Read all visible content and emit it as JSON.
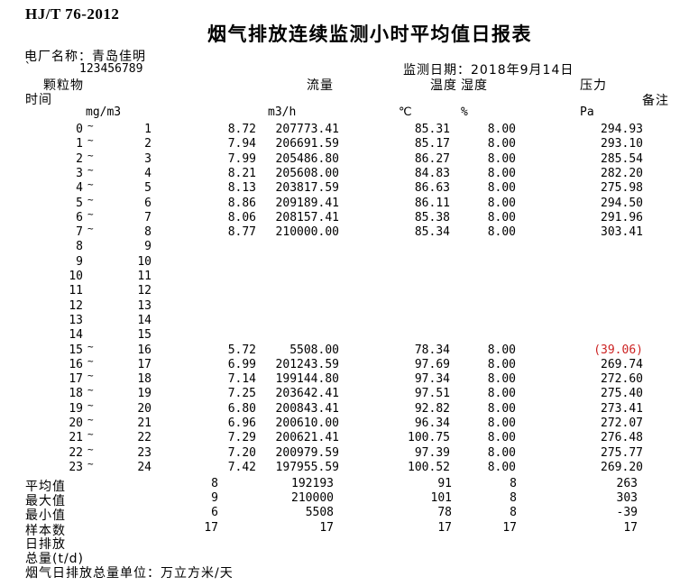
{
  "header": {
    "doc_code": "HJ/T 76-2012",
    "title": "烟气排放连续监测小时平均值日报表",
    "plant_label": "电厂名称：",
    "plant_name": "青岛佳明",
    "plant_mark": "`",
    "plant_code": "123456789",
    "date_label": "监测日期：",
    "date_value": "2018年9月14日"
  },
  "columns": {
    "time": "时间",
    "dust": "颗粒物",
    "flow": "流量",
    "temp": "温度",
    "humidity": "湿度",
    "pressure": "压力",
    "remark": "备注",
    "units": {
      "dust": "mg/m3",
      "flow": "m3/h",
      "temp": "℃",
      "humidity": "%",
      "pressure": "Pa"
    }
  },
  "rows": [
    {
      "start": "0",
      "tilde": "~",
      "end": "1",
      "dust": "8.72",
      "flow": "207773.41",
      "temp": "85.31",
      "hum": "8.00",
      "press": "294.93",
      "alarm": false
    },
    {
      "start": "1",
      "tilde": "~",
      "end": "2",
      "dust": "7.94",
      "flow": "206691.59",
      "temp": "85.17",
      "hum": "8.00",
      "press": "293.10",
      "alarm": false
    },
    {
      "start": "2",
      "tilde": "~",
      "end": "3",
      "dust": "7.99",
      "flow": "205486.80",
      "temp": "86.27",
      "hum": "8.00",
      "press": "285.54",
      "alarm": false
    },
    {
      "start": "3",
      "tilde": "~",
      "end": "4",
      "dust": "8.21",
      "flow": "205608.00",
      "temp": "84.83",
      "hum": "8.00",
      "press": "282.20",
      "alarm": false
    },
    {
      "start": "4",
      "tilde": "~",
      "end": "5",
      "dust": "8.13",
      "flow": "203817.59",
      "temp": "86.63",
      "hum": "8.00",
      "press": "275.98",
      "alarm": false
    },
    {
      "start": "5",
      "tilde": "~",
      "end": "6",
      "dust": "8.86",
      "flow": "209189.41",
      "temp": "86.11",
      "hum": "8.00",
      "press": "294.50",
      "alarm": false
    },
    {
      "start": "6",
      "tilde": "~",
      "end": "7",
      "dust": "8.06",
      "flow": "208157.41",
      "temp": "85.38",
      "hum": "8.00",
      "press": "291.96",
      "alarm": false
    },
    {
      "start": "7",
      "tilde": "~",
      "end": "8",
      "dust": "8.77",
      "flow": "210000.00",
      "temp": "85.34",
      "hum": "8.00",
      "press": "303.41",
      "alarm": false
    },
    {
      "start": "8",
      "tilde": "",
      "end": "9",
      "dust": "",
      "flow": "",
      "temp": "",
      "hum": "",
      "press": "",
      "alarm": false
    },
    {
      "start": "9",
      "tilde": "",
      "end": "10",
      "dust": "",
      "flow": "",
      "temp": "",
      "hum": "",
      "press": "",
      "alarm": false
    },
    {
      "start": "10",
      "tilde": "",
      "end": "11",
      "dust": "",
      "flow": "",
      "temp": "",
      "hum": "",
      "press": "",
      "alarm": false
    },
    {
      "start": "11",
      "tilde": "",
      "end": "12",
      "dust": "",
      "flow": "",
      "temp": "",
      "hum": "",
      "press": "",
      "alarm": false
    },
    {
      "start": "12",
      "tilde": "",
      "end": "13",
      "dust": "",
      "flow": "",
      "temp": "",
      "hum": "",
      "press": "",
      "alarm": false
    },
    {
      "start": "13",
      "tilde": "",
      "end": "14",
      "dust": "",
      "flow": "",
      "temp": "",
      "hum": "",
      "press": "",
      "alarm": false
    },
    {
      "start": "14",
      "tilde": "",
      "end": "15",
      "dust": "",
      "flow": "",
      "temp": "",
      "hum": "",
      "press": "",
      "alarm": false
    },
    {
      "start": "15",
      "tilde": "~",
      "end": "16",
      "dust": "5.72",
      "flow": "5508.00",
      "temp": "78.34",
      "hum": "8.00",
      "press": "(39.06)",
      "alarm": true
    },
    {
      "start": "16",
      "tilde": "~",
      "end": "17",
      "dust": "6.99",
      "flow": "201243.59",
      "temp": "97.69",
      "hum": "8.00",
      "press": "269.74",
      "alarm": false
    },
    {
      "start": "17",
      "tilde": "~",
      "end": "18",
      "dust": "7.14",
      "flow": "199144.80",
      "temp": "97.34",
      "hum": "8.00",
      "press": "272.60",
      "alarm": false
    },
    {
      "start": "18",
      "tilde": "~",
      "end": "19",
      "dust": "7.25",
      "flow": "203642.41",
      "temp": "97.51",
      "hum": "8.00",
      "press": "275.40",
      "alarm": false
    },
    {
      "start": "19",
      "tilde": "~",
      "end": "20",
      "dust": "6.80",
      "flow": "200843.41",
      "temp": "92.82",
      "hum": "8.00",
      "press": "273.41",
      "alarm": false
    },
    {
      "start": "20",
      "tilde": "~",
      "end": "21",
      "dust": "6.96",
      "flow": "200610.00",
      "temp": "96.34",
      "hum": "8.00",
      "press": "272.07",
      "alarm": false
    },
    {
      "start": "21",
      "tilde": "~",
      "end": "22",
      "dust": "7.29",
      "flow": "200621.41",
      "temp": "100.75",
      "hum": "8.00",
      "press": "276.48",
      "alarm": false
    },
    {
      "start": "22",
      "tilde": "~",
      "end": "23",
      "dust": "7.20",
      "flow": "200979.59",
      "temp": "97.39",
      "hum": "8.00",
      "press": "275.77",
      "alarm": false
    },
    {
      "start": "23",
      "tilde": "~",
      "end": "24",
      "dust": "7.42",
      "flow": "197955.59",
      "temp": "100.52",
      "hum": "8.00",
      "press": "269.20",
      "alarm": false
    }
  ],
  "summary": [
    {
      "label": "平均值",
      "dust": "8",
      "flow": "192193",
      "temp": "91",
      "hum": "8",
      "press": "263"
    },
    {
      "label": "最大值",
      "dust": "9",
      "flow": "210000",
      "temp": "101",
      "hum": "8",
      "press": "303"
    },
    {
      "label": "最小值",
      "dust": "6",
      "flow": "5508",
      "temp": "78",
      "hum": "8",
      "press": "-39"
    },
    {
      "label": "样本数",
      "dust": "17",
      "flow": "17",
      "temp": "17",
      "hum": "17",
      "press": "17"
    }
  ],
  "footer": {
    "daily_emission_line1": "日排放",
    "daily_emission_line2": "总量(t/d)",
    "unit_note": "烟气日排放总量单位：万立方米/天"
  },
  "colors": {
    "alarm_red": "#cc2222",
    "text": "#000000",
    "background": "#ffffff"
  }
}
